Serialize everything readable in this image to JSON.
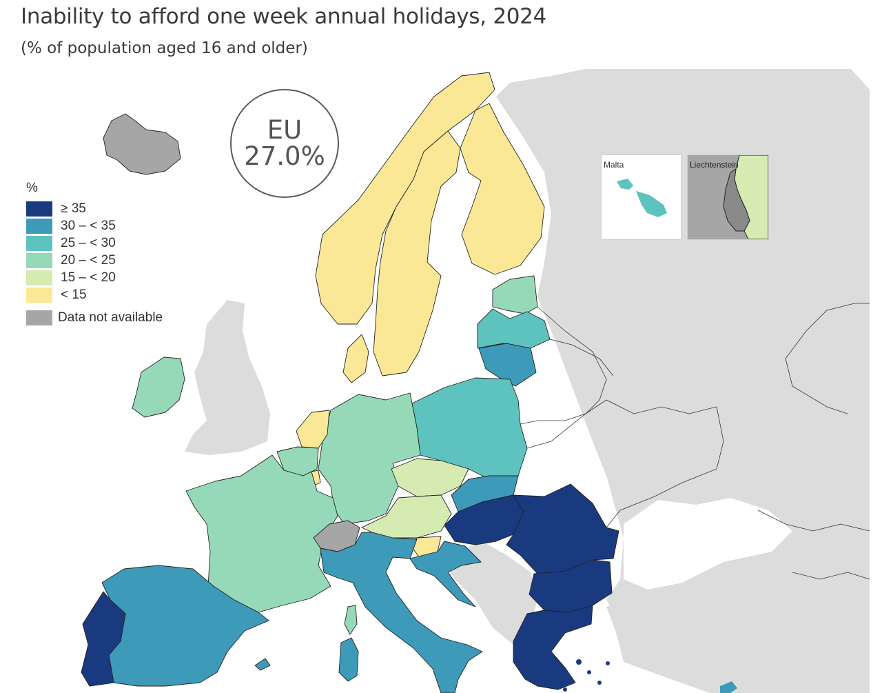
{
  "title": "Inability to afford one week annual holidays, 2024",
  "subtitle": "(% of population aged 16 and older)",
  "eu": {
    "label": "EU",
    "value": "27.0%"
  },
  "legend": {
    "title": "%",
    "classes": [
      {
        "label": "≥ 35",
        "color": "#1a3a80"
      },
      {
        "label": "30 – < 35",
        "color": "#3d9ab8"
      },
      {
        "label": "25 – < 30",
        "color": "#5ec3be"
      },
      {
        "label": "20 – < 25",
        "color": "#96d9b8"
      },
      {
        "label": "15 – < 20",
        "color": "#d6ebb2"
      },
      {
        "label": "< 15",
        "color": "#fbe896"
      }
    ],
    "not_available": {
      "label": "Data not available",
      "color": "#a6a6a6"
    }
  },
  "insets": {
    "malta": {
      "label": "Malta"
    },
    "liechtenstein": {
      "label": "Liechtenstein"
    }
  },
  "colors": {
    "non_eu": "#dcdcdc",
    "sea": "#ffffff",
    "border": "#222222"
  },
  "regions": [
    {
      "name": "Iceland",
      "class": "na"
    },
    {
      "name": "Switzerland",
      "class": "na"
    },
    {
      "name": "Liechtenstein",
      "class": "15 – < 20"
    },
    {
      "name": "Malta",
      "class": "25 – < 30"
    },
    {
      "name": "Norway",
      "class": "< 15"
    },
    {
      "name": "Sweden",
      "class": "< 15"
    },
    {
      "name": "Finland",
      "class": "< 15"
    },
    {
      "name": "Denmark",
      "class": "< 15"
    },
    {
      "name": "Netherlands",
      "class": "< 15"
    },
    {
      "name": "Luxembourg",
      "class": "< 15"
    },
    {
      "name": "Slovenia",
      "class": "< 15"
    },
    {
      "name": "Czechia",
      "class": "15 – < 20"
    },
    {
      "name": "Austria",
      "class": "15 – < 20"
    },
    {
      "name": "Estonia",
      "class": "20 – < 25"
    },
    {
      "name": "Germany",
      "class": "20 – < 25"
    },
    {
      "name": "Belgium",
      "class": "20 – < 25"
    },
    {
      "name": "France",
      "class": "20 – < 25"
    },
    {
      "name": "Ireland",
      "class": "20 – < 25"
    },
    {
      "name": "Latvia",
      "class": "25 – < 30"
    },
    {
      "name": "Poland",
      "class": "25 – < 30"
    },
    {
      "name": "Lithuania",
      "class": "30 – < 35"
    },
    {
      "name": "Slovakia",
      "class": "30 – < 35"
    },
    {
      "name": "Croatia",
      "class": "30 – < 35"
    },
    {
      "name": "Italy",
      "class": "30 – < 35"
    },
    {
      "name": "Spain",
      "class": "30 – < 35"
    },
    {
      "name": "Cyprus",
      "class": "30 – < 35"
    },
    {
      "name": "Hungary",
      "class": "≥ 35"
    },
    {
      "name": "Romania",
      "class": "≥ 35"
    },
    {
      "name": "Bulgaria",
      "class": "≥ 35"
    },
    {
      "name": "Greece",
      "class": "≥ 35"
    },
    {
      "name": "Portugal",
      "class": "≥ 35"
    }
  ]
}
